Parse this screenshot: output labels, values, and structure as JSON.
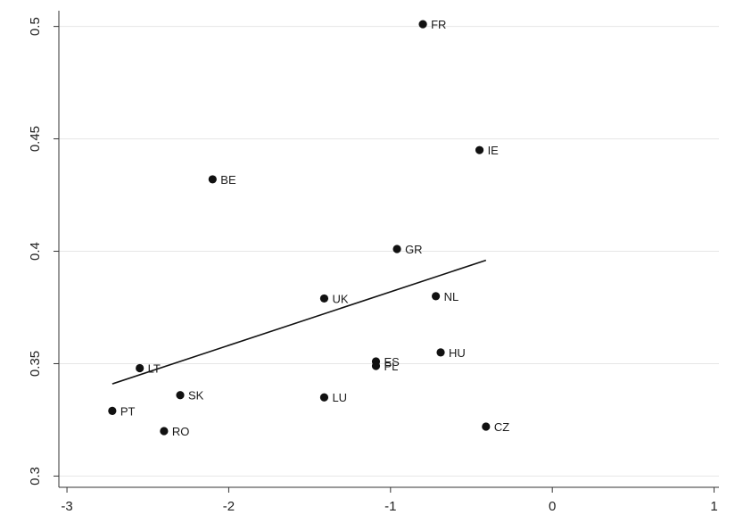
{
  "chart_data": {
    "type": "scatter",
    "title": "",
    "xlabel": "",
    "ylabel": "",
    "xlim": [
      -3.05,
      1.03
    ],
    "ylim": [
      0.295,
      0.507
    ],
    "x_ticks": [
      -3,
      -2,
      -1,
      0,
      1
    ],
    "y_ticks": [
      0.3,
      0.35,
      0.4,
      0.45,
      0.5
    ],
    "x_tick_labels": [
      "-3",
      "-2",
      "-1",
      "0",
      "1"
    ],
    "y_tick_labels": [
      "0.3",
      "0.35",
      "0.4",
      "0.45",
      "0.5"
    ],
    "grid": "horizontal",
    "points": [
      {
        "label": "FR",
        "x": -0.8,
        "y": 0.501
      },
      {
        "label": "IE",
        "x": -0.45,
        "y": 0.445
      },
      {
        "label": "BE",
        "x": -2.1,
        "y": 0.432
      },
      {
        "label": "GR",
        "x": -0.96,
        "y": 0.401
      },
      {
        "label": "NL",
        "x": -0.72,
        "y": 0.38
      },
      {
        "label": "UK",
        "x": -1.41,
        "y": 0.379
      },
      {
        "label": "HU",
        "x": -0.69,
        "y": 0.355
      },
      {
        "label": "ES",
        "x": -1.09,
        "y": 0.351
      },
      {
        "label": "PL",
        "x": -1.09,
        "y": 0.349
      },
      {
        "label": "LT",
        "x": -2.55,
        "y": 0.348
      },
      {
        "label": "SK",
        "x": -2.3,
        "y": 0.336
      },
      {
        "label": "LU",
        "x": -1.41,
        "y": 0.335
      },
      {
        "label": "PT",
        "x": -2.72,
        "y": 0.329
      },
      {
        "label": "CZ",
        "x": -0.41,
        "y": 0.322
      },
      {
        "label": "RO",
        "x": -2.4,
        "y": 0.32
      }
    ],
    "fit_line": {
      "x": [
        -2.72,
        -0.41
      ],
      "y": [
        0.341,
        0.396
      ]
    }
  }
}
